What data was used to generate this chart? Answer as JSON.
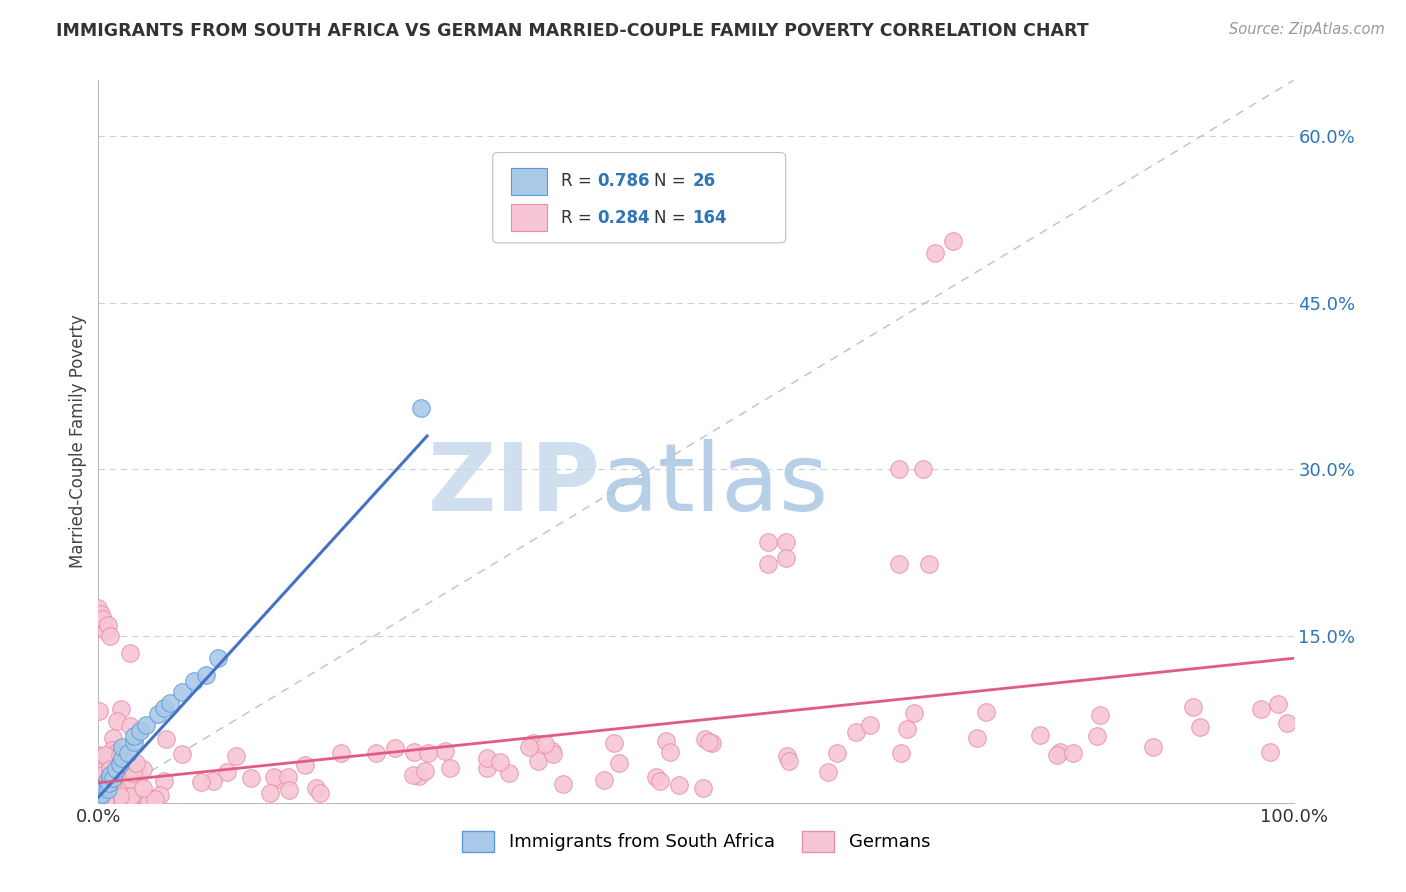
{
  "title": "IMMIGRANTS FROM SOUTH AFRICA VS GERMAN MARRIED-COUPLE FAMILY POVERTY CORRELATION CHART",
  "source": "Source: ZipAtlas.com",
  "ylabel": "Married-Couple Family Poverty",
  "yticks": [
    0.0,
    0.15,
    0.3,
    0.45,
    0.6
  ],
  "ytick_labels": [
    "",
    "15.0%",
    "30.0%",
    "45.0%",
    "60.0%"
  ],
  "xlim": [
    0.0,
    1.0
  ],
  "ylim": [
    0.0,
    0.65
  ],
  "series1_name": "Immigrants from South Africa",
  "series1_color": "#aac9e8",
  "series1_edge_color": "#5b9bd5",
  "series1_R": 0.786,
  "series1_N": 26,
  "series1_line_color": "#4472c4",
  "series2_name": "Germans",
  "series2_color": "#f7c6d4",
  "series2_edge_color": "#e88fa8",
  "series2_R": 0.284,
  "series2_N": 164,
  "series2_line_color": "#e05c80",
  "legend_R_color": "#2e75b6",
  "legend_N_color": "#2e75b6",
  "watermark_zip": "ZIP",
  "watermark_atlas": "atlas",
  "watermark_color_zip": "#d0dff0",
  "watermark_color_atlas": "#b8cfe8",
  "background_color": "#ffffff",
  "grid_color": "#d0d0d0",
  "diag_color": "#b0c4de",
  "tick_color": "#2e75b6",
  "title_color": "#333333",
  "source_color": "#999999",
  "legend_box_color": "#e8e8f0",
  "legend_box_edge": "#c0c0d0"
}
